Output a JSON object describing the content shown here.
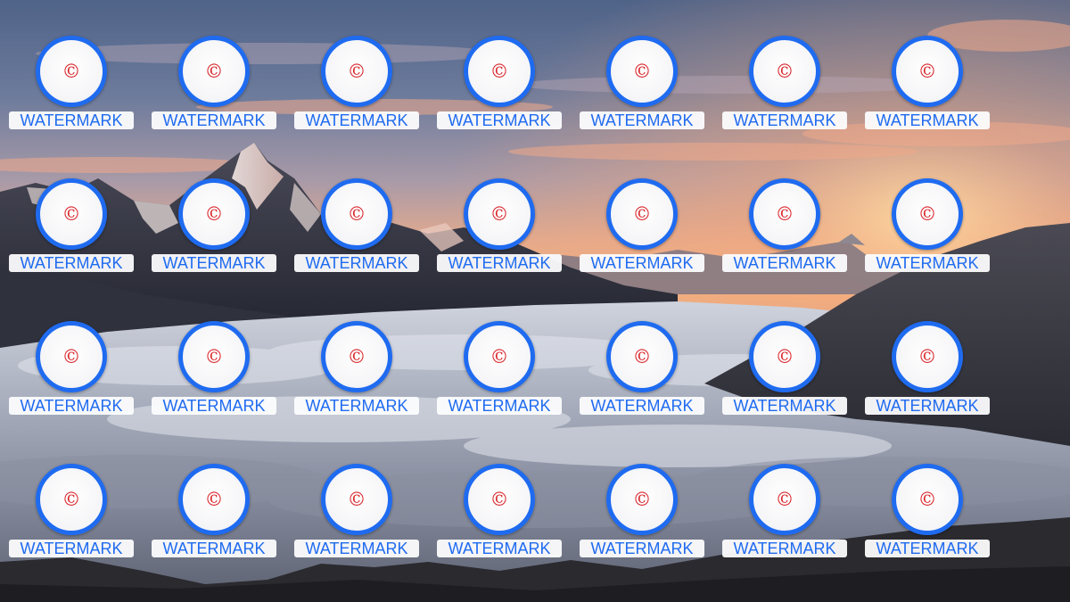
{
  "desktop": {
    "icons": [
      {
        "label": "WATERMARK",
        "icon": "copyright-icon",
        "glyph": "©"
      },
      {
        "label": "WATERMARK",
        "icon": "copyright-icon",
        "glyph": "©"
      },
      {
        "label": "WATERMARK",
        "icon": "copyright-icon",
        "glyph": "©"
      },
      {
        "label": "WATERMARK",
        "icon": "copyright-icon",
        "glyph": "©"
      },
      {
        "label": "WATERMARK",
        "icon": "copyright-icon",
        "glyph": "©"
      },
      {
        "label": "WATERMARK",
        "icon": "copyright-icon",
        "glyph": "©"
      },
      {
        "label": "WATERMARK",
        "icon": "copyright-icon",
        "glyph": "©"
      },
      {
        "label": "WATERMARK",
        "icon": "copyright-icon",
        "glyph": "©"
      },
      {
        "label": "WATERMARK",
        "icon": "copyright-icon",
        "glyph": "©"
      },
      {
        "label": "WATERMARK",
        "icon": "copyright-icon",
        "glyph": "©"
      },
      {
        "label": "WATERMARK",
        "icon": "copyright-icon",
        "glyph": "©"
      },
      {
        "label": "WATERMARK",
        "icon": "copyright-icon",
        "glyph": "©"
      },
      {
        "label": "WATERMARK",
        "icon": "copyright-icon",
        "glyph": "©"
      },
      {
        "label": "WATERMARK",
        "icon": "copyright-icon",
        "glyph": "©"
      },
      {
        "label": "WATERMARK",
        "icon": "copyright-icon",
        "glyph": "©"
      },
      {
        "label": "WATERMARK",
        "icon": "copyright-icon",
        "glyph": "©"
      },
      {
        "label": "WATERMARK",
        "icon": "copyright-icon",
        "glyph": "©"
      },
      {
        "label": "WATERMARK",
        "icon": "copyright-icon",
        "glyph": "©"
      },
      {
        "label": "WATERMARK",
        "icon": "copyright-icon",
        "glyph": "©"
      },
      {
        "label": "WATERMARK",
        "icon": "copyright-icon",
        "glyph": "©"
      },
      {
        "label": "WATERMARK",
        "icon": "copyright-icon",
        "glyph": "©"
      },
      {
        "label": "WATERMARK",
        "icon": "copyright-icon",
        "glyph": "©"
      },
      {
        "label": "WATERMARK",
        "icon": "copyright-icon",
        "glyph": "©"
      },
      {
        "label": "WATERMARK",
        "icon": "copyright-icon",
        "glyph": "©"
      },
      {
        "label": "WATERMARK",
        "icon": "copyright-icon",
        "glyph": "©"
      },
      {
        "label": "WATERMARK",
        "icon": "copyright-icon",
        "glyph": "©"
      },
      {
        "label": "WATERMARK",
        "icon": "copyright-icon",
        "glyph": "©"
      },
      {
        "label": "WATERMARK",
        "icon": "copyright-icon",
        "glyph": "©"
      }
    ]
  },
  "wallpaper": {
    "scene": "mountain-sunset-over-sea-of-clouds"
  },
  "colors": {
    "icon_ring": "#1f6bf0",
    "label_text": "#1f6bf0",
    "glyph": "#d9262b",
    "label_bg": "#fcfcfd"
  }
}
